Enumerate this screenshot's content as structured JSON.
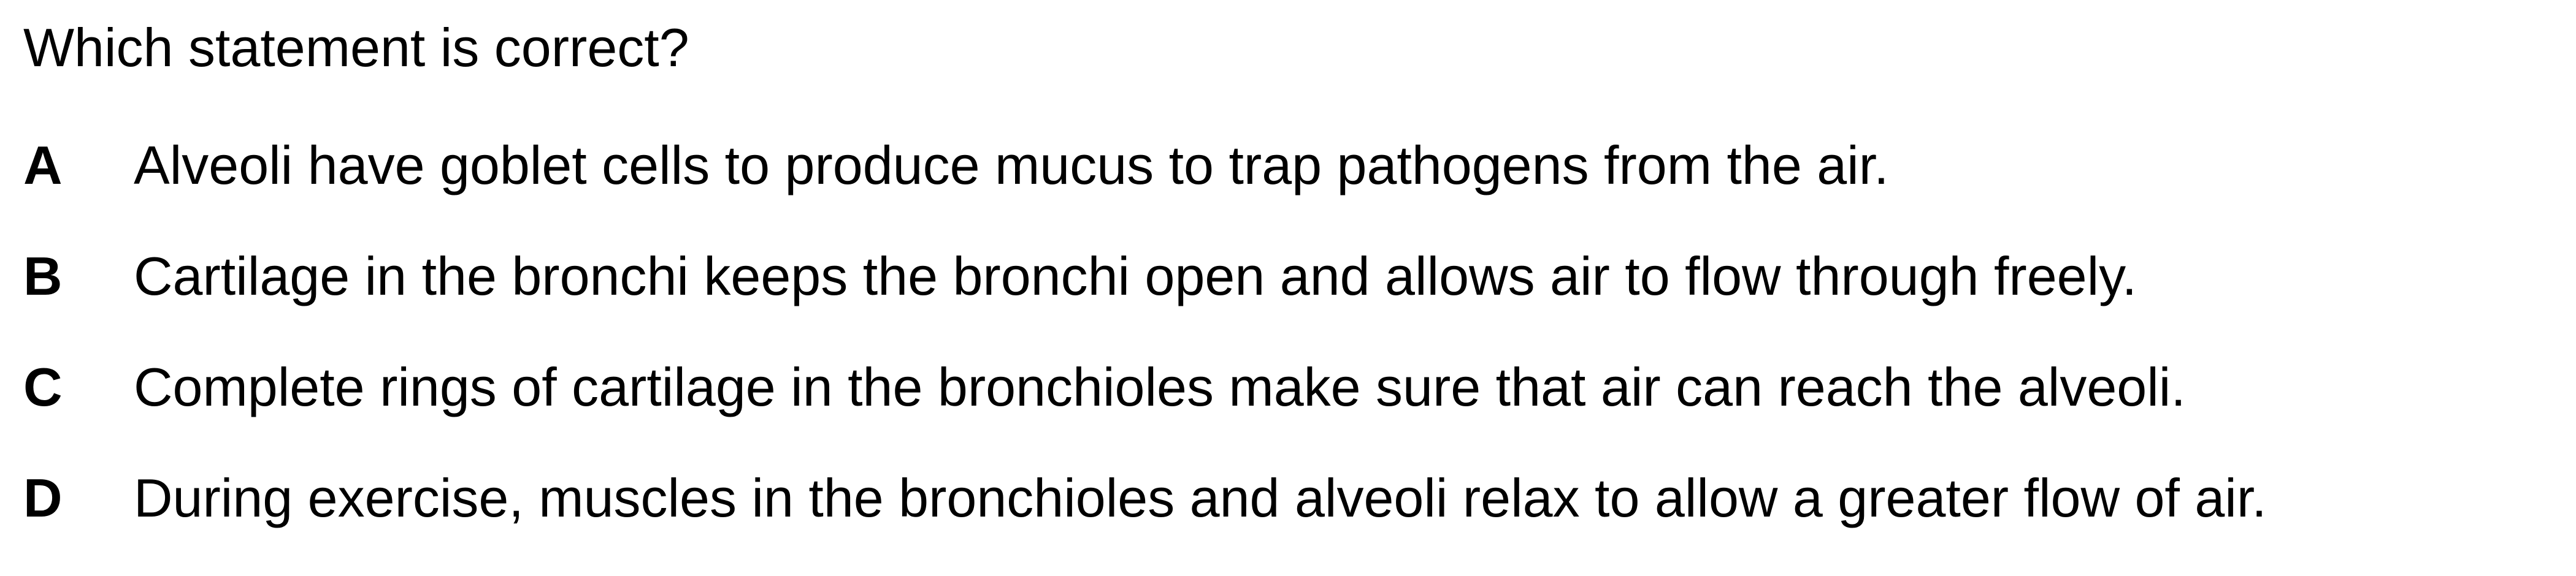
{
  "question": {
    "text": "Which statement is correct?"
  },
  "options": [
    {
      "letter": "A",
      "text": "Alveoli have goblet cells to produce mucus to trap pathogens from the air."
    },
    {
      "letter": "B",
      "text": "Cartilage in the bronchi keeps the bronchi open and allows air to flow through freely."
    },
    {
      "letter": "C",
      "text": "Complete rings of cartilage in the bronchioles make sure that air can reach the alveoli."
    },
    {
      "letter": "D",
      "text": "During exercise, muscles in the bronchioles and alveoli relax to allow a greater flow of air."
    }
  ]
}
